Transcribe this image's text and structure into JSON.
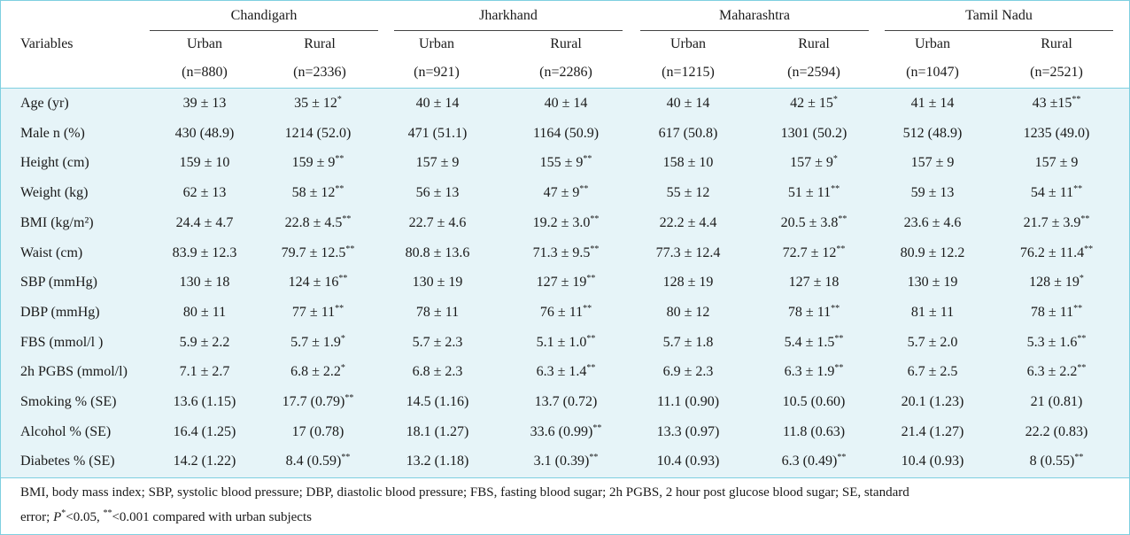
{
  "header": {
    "variables_label": "Variables",
    "states": [
      {
        "name": "Chandigarh",
        "urban_label": "Urban",
        "rural_label": "Rural",
        "urban_n": "(n=880)",
        "rural_n": "(n=2336)"
      },
      {
        "name": "Jharkhand",
        "urban_label": "Urban",
        "rural_label": "Rural",
        "urban_n": "(n=921)",
        "rural_n": "(n=2286)"
      },
      {
        "name": "Maharashtra",
        "urban_label": "Urban",
        "rural_label": "Rural",
        "urban_n": "(n=1215)",
        "rural_n": "(n=2594)"
      },
      {
        "name": "Tamil Nadu",
        "urban_label": "Urban",
        "rural_label": "Rural",
        "urban_n": "(n=1047)",
        "rural_n": "(n=2521)"
      }
    ]
  },
  "rows": [
    {
      "label": "Age (yr)",
      "cells": [
        {
          "v": "39 ± 13",
          "s": ""
        },
        {
          "v": "35 ± 12",
          "s": "*"
        },
        {
          "v": "40 ± 14",
          "s": ""
        },
        {
          "v": "40 ± 14",
          "s": ""
        },
        {
          "v": "40 ± 14",
          "s": ""
        },
        {
          "v": "42 ± 15",
          "s": "*"
        },
        {
          "v": "41 ± 14",
          "s": ""
        },
        {
          "v": "43 ±15",
          "s": "**"
        }
      ]
    },
    {
      "label": "Male n (%)",
      "cells": [
        {
          "v": "430 (48.9)",
          "s": ""
        },
        {
          "v": "1214 (52.0)",
          "s": ""
        },
        {
          "v": "471 (51.1)",
          "s": ""
        },
        {
          "v": "1164 (50.9)",
          "s": ""
        },
        {
          "v": "617 (50.8)",
          "s": ""
        },
        {
          "v": "1301 (50.2)",
          "s": ""
        },
        {
          "v": "512 (48.9)",
          "s": ""
        },
        {
          "v": "1235 (49.0)",
          "s": ""
        }
      ]
    },
    {
      "label": "Height (cm)",
      "cells": [
        {
          "v": "159 ± 10",
          "s": ""
        },
        {
          "v": "159 ± 9",
          "s": "**"
        },
        {
          "v": "157 ± 9",
          "s": ""
        },
        {
          "v": "155 ± 9",
          "s": "**"
        },
        {
          "v": "158 ± 10",
          "s": ""
        },
        {
          "v": "157 ± 9",
          "s": "*"
        },
        {
          "v": "157 ± 9",
          "s": ""
        },
        {
          "v": "157 ± 9",
          "s": ""
        }
      ]
    },
    {
      "label": "Weight (kg)",
      "cells": [
        {
          "v": "62 ± 13",
          "s": ""
        },
        {
          "v": "58 ± 12",
          "s": "**"
        },
        {
          "v": "56 ± 13",
          "s": ""
        },
        {
          "v": "47 ± 9",
          "s": "**"
        },
        {
          "v": "55 ± 12",
          "s": ""
        },
        {
          "v": "51 ± 11",
          "s": "**"
        },
        {
          "v": "59 ± 13",
          "s": ""
        },
        {
          "v": "54 ± 11",
          "s": "**"
        }
      ]
    },
    {
      "label": "BMI (kg/m²)",
      "cells": [
        {
          "v": "24.4 ± 4.7",
          "s": ""
        },
        {
          "v": "22.8 ± 4.5",
          "s": "**"
        },
        {
          "v": "22.7 ± 4.6",
          "s": ""
        },
        {
          "v": "19.2 ± 3.0",
          "s": "**"
        },
        {
          "v": "22.2 ± 4.4",
          "s": ""
        },
        {
          "v": "20.5 ± 3.8",
          "s": "**"
        },
        {
          "v": "23.6 ± 4.6",
          "s": ""
        },
        {
          "v": "21.7 ± 3.9",
          "s": "**"
        }
      ]
    },
    {
      "label": "Waist (cm)",
      "cells": [
        {
          "v": "83.9 ± 12.3",
          "s": ""
        },
        {
          "v": "79.7 ± 12.5",
          "s": "**"
        },
        {
          "v": "80.8 ± 13.6",
          "s": ""
        },
        {
          "v": "71.3 ± 9.5",
          "s": "**"
        },
        {
          "v": "77.3 ± 12.4",
          "s": ""
        },
        {
          "v": "72.7 ± 12",
          "s": "**"
        },
        {
          "v": "80.9 ± 12.2",
          "s": ""
        },
        {
          "v": "76.2 ± 11.4",
          "s": "**"
        }
      ]
    },
    {
      "label": "SBP (mmHg)",
      "cells": [
        {
          "v": "130 ± 18",
          "s": ""
        },
        {
          "v": "124 ± 16",
          "s": "**"
        },
        {
          "v": "130 ± 19",
          "s": ""
        },
        {
          "v": "127 ± 19",
          "s": "**"
        },
        {
          "v": "128 ± 19",
          "s": ""
        },
        {
          "v": "127 ± 18",
          "s": ""
        },
        {
          "v": "130 ± 19",
          "s": ""
        },
        {
          "v": "128 ± 19",
          "s": "*"
        }
      ]
    },
    {
      "label": "DBP (mmHg)",
      "cells": [
        {
          "v": "80 ± 11",
          "s": ""
        },
        {
          "v": "77 ± 11",
          "s": "**"
        },
        {
          "v": "78 ± 11",
          "s": ""
        },
        {
          "v": "76 ± 11",
          "s": "**"
        },
        {
          "v": "80 ± 12",
          "s": ""
        },
        {
          "v": "78 ± 11",
          "s": "**"
        },
        {
          "v": "81 ± 11",
          "s": ""
        },
        {
          "v": "78 ± 11",
          "s": "**"
        }
      ]
    },
    {
      "label": "FBS (mmol/l )",
      "cells": [
        {
          "v": "5.9 ± 2.2",
          "s": ""
        },
        {
          "v": "5.7 ± 1.9",
          "s": "*"
        },
        {
          "v": "5.7 ± 2.3",
          "s": ""
        },
        {
          "v": "5.1 ± 1.0",
          "s": "**"
        },
        {
          "v": "5.7 ± 1.8",
          "s": ""
        },
        {
          "v": "5.4 ± 1.5",
          "s": "**"
        },
        {
          "v": "5.7 ± 2.0",
          "s": ""
        },
        {
          "v": "5.3 ± 1.6",
          "s": "**"
        }
      ]
    },
    {
      "label": "2h PGBS (mmol/l)",
      "cells": [
        {
          "v": "7.1 ± 2.7",
          "s": ""
        },
        {
          "v": "6.8 ± 2.2",
          "s": "*"
        },
        {
          "v": "6.8 ± 2.3",
          "s": ""
        },
        {
          "v": "6.3 ± 1.4",
          "s": "**"
        },
        {
          "v": "6.9 ± 2.3",
          "s": ""
        },
        {
          "v": "6.3 ± 1.9",
          "s": "**"
        },
        {
          "v": "6.7 ± 2.5",
          "s": ""
        },
        {
          "v": "6.3 ± 2.2",
          "s": "**"
        }
      ]
    },
    {
      "label": "Smoking % (SE)",
      "cells": [
        {
          "v": "13.6 (1.15)",
          "s": ""
        },
        {
          "v": "17.7 (0.79)",
          "s": "**"
        },
        {
          "v": "14.5 (1.16)",
          "s": ""
        },
        {
          "v": "13.7 (0.72)",
          "s": ""
        },
        {
          "v": "11.1 (0.90)",
          "s": ""
        },
        {
          "v": "10.5 (0.60)",
          "s": ""
        },
        {
          "v": "20.1 (1.23)",
          "s": ""
        },
        {
          "v": "21 (0.81)",
          "s": ""
        }
      ]
    },
    {
      "label": "Alcohol % (SE)",
      "cells": [
        {
          "v": "16.4 (1.25)",
          "s": ""
        },
        {
          "v": "17 (0.78)",
          "s": ""
        },
        {
          "v": "18.1 (1.27)",
          "s": ""
        },
        {
          "v": "33.6 (0.99)",
          "s": "**"
        },
        {
          "v": "13.3 (0.97)",
          "s": ""
        },
        {
          "v": "11.8 (0.63)",
          "s": ""
        },
        {
          "v": "21.4 (1.27)",
          "s": ""
        },
        {
          "v": "22.2 (0.83)",
          "s": ""
        }
      ]
    },
    {
      "label": "Diabetes % (SE)",
      "cells": [
        {
          "v": "14.2 (1.22)",
          "s": ""
        },
        {
          "v": "8.4 (0.59)",
          "s": "**"
        },
        {
          "v": "13.2 (1.18)",
          "s": ""
        },
        {
          "v": "3.1 (0.39)",
          "s": "**"
        },
        {
          "v": "10.4 (0.93)",
          "s": ""
        },
        {
          "v": "6.3 (0.49)",
          "s": "**"
        },
        {
          "v": "10.4 (0.93)",
          "s": ""
        },
        {
          "v": "8 (0.55)",
          "s": "**"
        }
      ]
    }
  ],
  "footnote": {
    "line1": "BMI, body mass index; SBP, systolic blood pressure; DBP, diastolic blood pressure; FBS, fasting blood sugar; 2h PGBS, 2 hour post glucose blood sugar; SE, standard",
    "line2_pre": "error; ",
    "p_letter": "P",
    "star1": "*",
    "line2_mid": "<0.05, ",
    "star2": "**",
    "line2_post": "<0.001 compared with urban subjects"
  },
  "colors": {
    "border": "#7ecfe0",
    "body_bg": "#e6f4f8"
  }
}
